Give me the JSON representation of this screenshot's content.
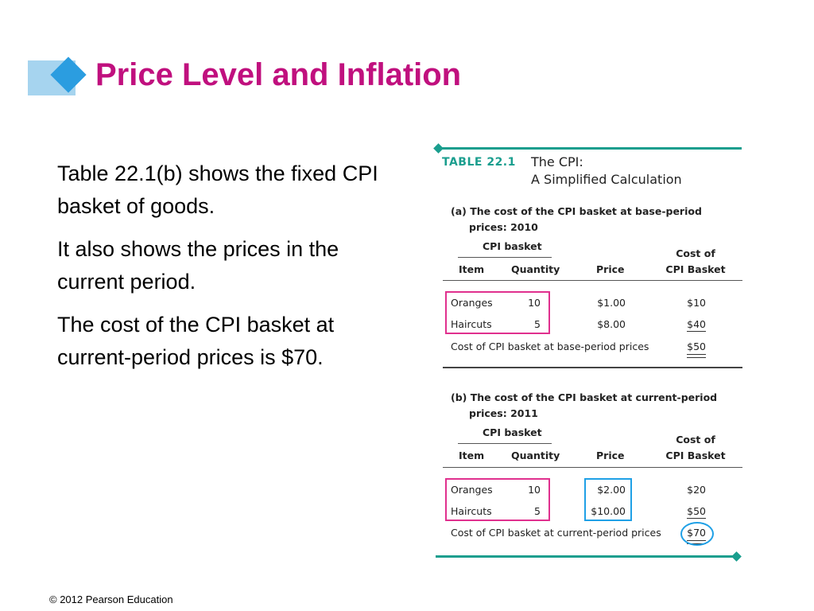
{
  "slide": {
    "title": "Price Level and Inflation",
    "paragraphs": [
      "Table 22.1(b) shows the fixed CPI basket of goods.",
      "It also shows the prices in the current period.",
      "The cost of the CPI basket at current-period prices is $70."
    ],
    "footer": "© 2012 Pearson Education"
  },
  "table": {
    "label": "TABLE  22.1",
    "title_line1": "The CPI:",
    "title_line2": "A Simplified Calculation",
    "section_a": {
      "heading_line1": "(a) The cost of the CPI basket at base-period",
      "heading_line2": "prices: 2010",
      "group_header": "CPI basket",
      "columns": [
        "Item",
        "Quantity",
        "Price",
        "Cost of",
        "CPI Basket"
      ],
      "rows": [
        {
          "item": "Oranges",
          "quantity": "10",
          "price": "$1.00",
          "cost": "$10"
        },
        {
          "item": "Haircuts",
          "quantity": "5",
          "price": "$8.00",
          "cost": "$40"
        }
      ],
      "total_label": "Cost of CPI basket at base-period prices",
      "total_value": "$50"
    },
    "section_b": {
      "heading_line1": "(b) The cost of the CPI basket at current-period",
      "heading_line2": "prices: 2011",
      "group_header": "CPI basket",
      "columns": [
        "Item",
        "Quantity",
        "Price",
        "Cost of",
        "CPI Basket"
      ],
      "rows": [
        {
          "item": "Oranges",
          "quantity": "10",
          "price": "$2.00",
          "cost": "$20"
        },
        {
          "item": "Haircuts",
          "quantity": "5",
          "price": "$10.00",
          "cost": "$50"
        }
      ],
      "total_label": "Cost of CPI basket at current-period prices",
      "total_value": "$70"
    }
  },
  "colors": {
    "title": "#c0107e",
    "teal": "#1a9e8e",
    "highlight_pink": "#e0308e",
    "highlight_blue": "#1fa0e6"
  }
}
